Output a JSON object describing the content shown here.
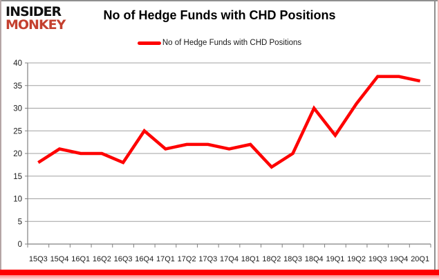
{
  "logo": {
    "line1": "INSIDER",
    "line2": "MONKEY"
  },
  "header": {
    "title": "No of Hedge Funds with CHD Positions"
  },
  "legend": {
    "label": "No of Hedge Funds with CHD Positions"
  },
  "colors": {
    "line": "#fe0000",
    "logo_red": "#c4402f",
    "grid": "#a0a0a0",
    "axis": "#808080",
    "tick_text": "#1a1a1a",
    "accent_bar": "#fe0000"
  },
  "chart_data": {
    "type": "line",
    "title": "No of Hedge Funds with CHD Positions",
    "categories": [
      "15Q3",
      "15Q4",
      "16Q1",
      "16Q2",
      "16Q3",
      "16Q4",
      "17Q1",
      "17Q2",
      "17Q3",
      "17Q4",
      "18Q1",
      "18Q2",
      "18Q3",
      "18Q4",
      "19Q1",
      "19Q2",
      "19Q3",
      "19Q4",
      "20Q1"
    ],
    "series": [
      {
        "name": "No of Hedge Funds with CHD Positions",
        "values": [
          18,
          21,
          20,
          20,
          18,
          25,
          21,
          22,
          22,
          21,
          22,
          17,
          20,
          30,
          24,
          31,
          37,
          37,
          36
        ]
      }
    ],
    "xlabel": "",
    "ylabel": "",
    "ylim": [
      0,
      40
    ],
    "ytick_step": 5,
    "grid": true,
    "legend_position": "top"
  }
}
